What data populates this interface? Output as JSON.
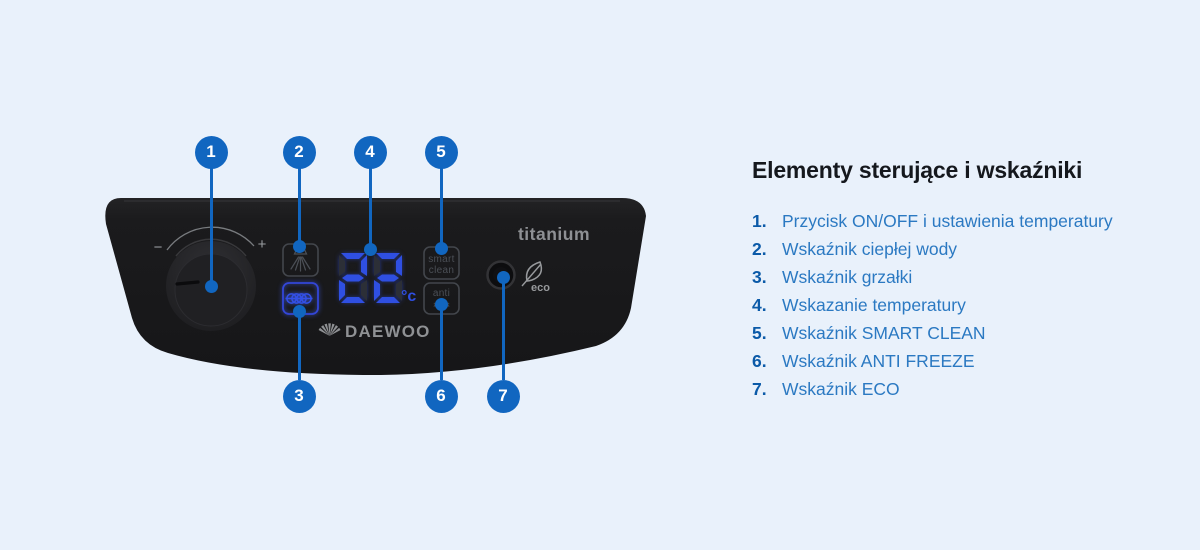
{
  "colors": {
    "background": "#e9f1fb",
    "accent": "#1166c0",
    "panel": "#1b1b1d",
    "display_on": "#2f4fe2",
    "display_off": "#2c2f37",
    "legend_number": "#0b5aa8",
    "legend_text": "#2b79c2",
    "heading_text": "#15181d",
    "device_text_gray": "#8f9194",
    "icon_gray": "#4b4f56",
    "heater_blue": "#3350e8"
  },
  "device": {
    "brand": "DAEWOO",
    "model": "titanium",
    "display": {
      "value": "22",
      "unit": "°c"
    },
    "knob": {
      "minus": "−",
      "plus": "+"
    },
    "smart_clean": {
      "line1": "smart",
      "line2": "clean"
    },
    "anti_freeze": {
      "line1": "anti",
      "line2": "❄ ❄"
    },
    "eco_label": "eco"
  },
  "callouts": [
    {
      "n": "1"
    },
    {
      "n": "2"
    },
    {
      "n": "3"
    },
    {
      "n": "4"
    },
    {
      "n": "5"
    },
    {
      "n": "6"
    },
    {
      "n": "7"
    }
  ],
  "legend": {
    "title": "Elementy sterujące i wskaźniki",
    "items": [
      {
        "num": "1.",
        "label": "Przycisk ON/OFF i ustawienia temperatury"
      },
      {
        "num": "2.",
        "label": "Wskaźnik ciepłej wody"
      },
      {
        "num": "3.",
        "label": "Wskaźnik grzałki"
      },
      {
        "num": "4.",
        "label": "Wskazanie temperatury"
      },
      {
        "num": "5.",
        "label": "Wskaźnik SMART CLEAN"
      },
      {
        "num": "6.",
        "label": "Wskaźnik ANTI FREEZE"
      },
      {
        "num": "7.",
        "label": "Wskaźnik ECO"
      }
    ]
  }
}
